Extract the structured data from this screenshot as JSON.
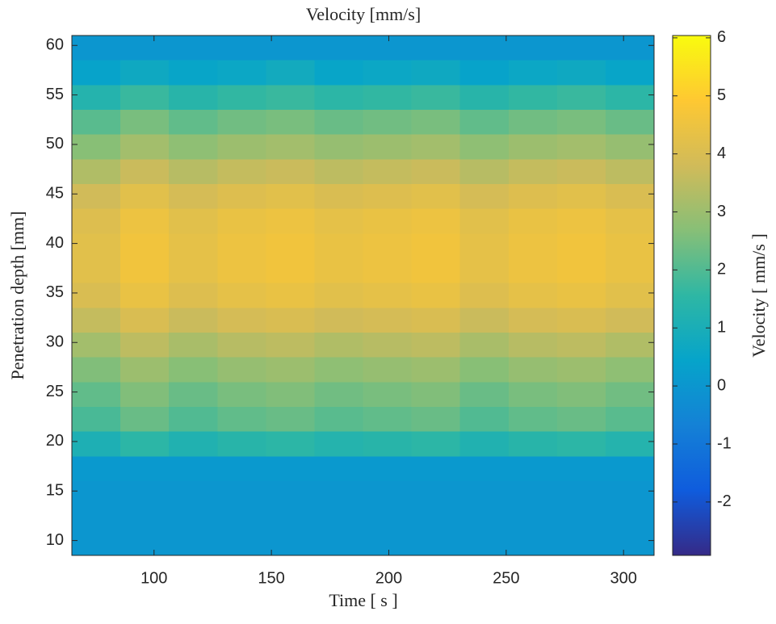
{
  "chart_data": {
    "type": "heatmap",
    "title": "Velocity [mm/s]",
    "x_label": "Time [ s ]",
    "y_label": "Penetration depth [mm]",
    "colorbar_label": "Velocity [ mm/s ]",
    "xlim": [
      65,
      313
    ],
    "xticks": [
      100,
      150,
      200,
      250,
      300
    ],
    "ylim": [
      8.5,
      61
    ],
    "yticks": [
      10,
      15,
      20,
      25,
      30,
      35,
      40,
      45,
      50,
      55,
      60
    ],
    "clim": [
      -2.92,
      6.04
    ],
    "cticks": [
      -2,
      -1,
      0,
      1,
      2,
      3,
      4,
      5,
      6
    ],
    "colormap": [
      "#352a87",
      "#0f5cdd",
      "#1481d6",
      "#06a4ca",
      "#2eb7a4",
      "#87bf77",
      "#d1bb59",
      "#fec832",
      "#f9fb0e"
    ],
    "values": [
      [
        0,
        0,
        0,
        0,
        0,
        0,
        0,
        0,
        0,
        0,
        0,
        0
      ],
      [
        0.4,
        0.7,
        0.5,
        0.6,
        0.8,
        0.5,
        0.6,
        0.7,
        0.4,
        0.6,
        0.7,
        0.5
      ],
      [
        1.3,
        1.7,
        1.4,
        1.6,
        1.7,
        1.5,
        1.6,
        1.7,
        1.4,
        1.6,
        1.7,
        1.5
      ],
      [
        2.1,
        2.5,
        2.2,
        2.4,
        2.5,
        2.3,
        2.4,
        2.5,
        2.2,
        2.4,
        2.5,
        2.3
      ],
      [
        2.7,
        3.1,
        2.8,
        3.0,
        3.1,
        2.9,
        3.0,
        3.1,
        2.8,
        3.0,
        3.1,
        2.9
      ],
      [
        3.3,
        3.7,
        3.4,
        3.6,
        3.7,
        3.5,
        3.6,
        3.7,
        3.4,
        3.6,
        3.7,
        3.5
      ],
      [
        3.8,
        4.2,
        3.9,
        4.1,
        4.2,
        4.0,
        4.1,
        4.2,
        3.9,
        4.1,
        4.2,
        4.0
      ],
      [
        4.1,
        4.5,
        4.2,
        4.4,
        4.5,
        4.3,
        4.4,
        4.5,
        4.2,
        4.4,
        4.5,
        4.3
      ],
      [
        4.2,
        4.6,
        4.3,
        4.5,
        4.6,
        4.4,
        4.5,
        4.6,
        4.3,
        4.5,
        4.6,
        4.4
      ],
      [
        4.2,
        4.6,
        4.3,
        4.5,
        4.6,
        4.4,
        4.5,
        4.6,
        4.3,
        4.5,
        4.6,
        4.4
      ],
      [
        4.0,
        4.4,
        4.1,
        4.3,
        4.4,
        4.2,
        4.3,
        4.4,
        4.1,
        4.3,
        4.4,
        4.2
      ],
      [
        3.6,
        4.0,
        3.7,
        3.9,
        4.0,
        3.8,
        3.9,
        4.0,
        3.7,
        3.9,
        4.0,
        3.8
      ],
      [
        3.1,
        3.5,
        3.2,
        3.4,
        3.5,
        3.3,
        3.4,
        3.5,
        3.2,
        3.4,
        3.5,
        3.3
      ],
      [
        2.6,
        3.0,
        2.7,
        2.9,
        3.0,
        2.8,
        2.9,
        3.0,
        2.7,
        2.9,
        3.0,
        2.8
      ],
      [
        2.2,
        2.6,
        2.3,
        2.5,
        2.6,
        2.4,
        2.5,
        2.6,
        2.3,
        2.5,
        2.6,
        2.4
      ],
      [
        1.9,
        2.3,
        2.0,
        2.2,
        2.3,
        2.1,
        2.2,
        2.3,
        2.0,
        2.2,
        2.3,
        2.1
      ],
      [
        1.1,
        1.5,
        1.2,
        1.4,
        1.5,
        1.3,
        1.4,
        1.5,
        1.2,
        1.4,
        1.5,
        1.3
      ],
      [
        0.1,
        0.1,
        0.1,
        0.1,
        0.1,
        0.1,
        0.1,
        0.1,
        0.1,
        0.1,
        0.1,
        0.1
      ],
      [
        0,
        0,
        0,
        0,
        0,
        0,
        0,
        0,
        0,
        0,
        0,
        0
      ],
      [
        0,
        0,
        0,
        0,
        0,
        0,
        0,
        0,
        0,
        0,
        0,
        0
      ],
      [
        0,
        0,
        0,
        0,
        0,
        0,
        0,
        0,
        0,
        0,
        0,
        0
      ]
    ]
  }
}
